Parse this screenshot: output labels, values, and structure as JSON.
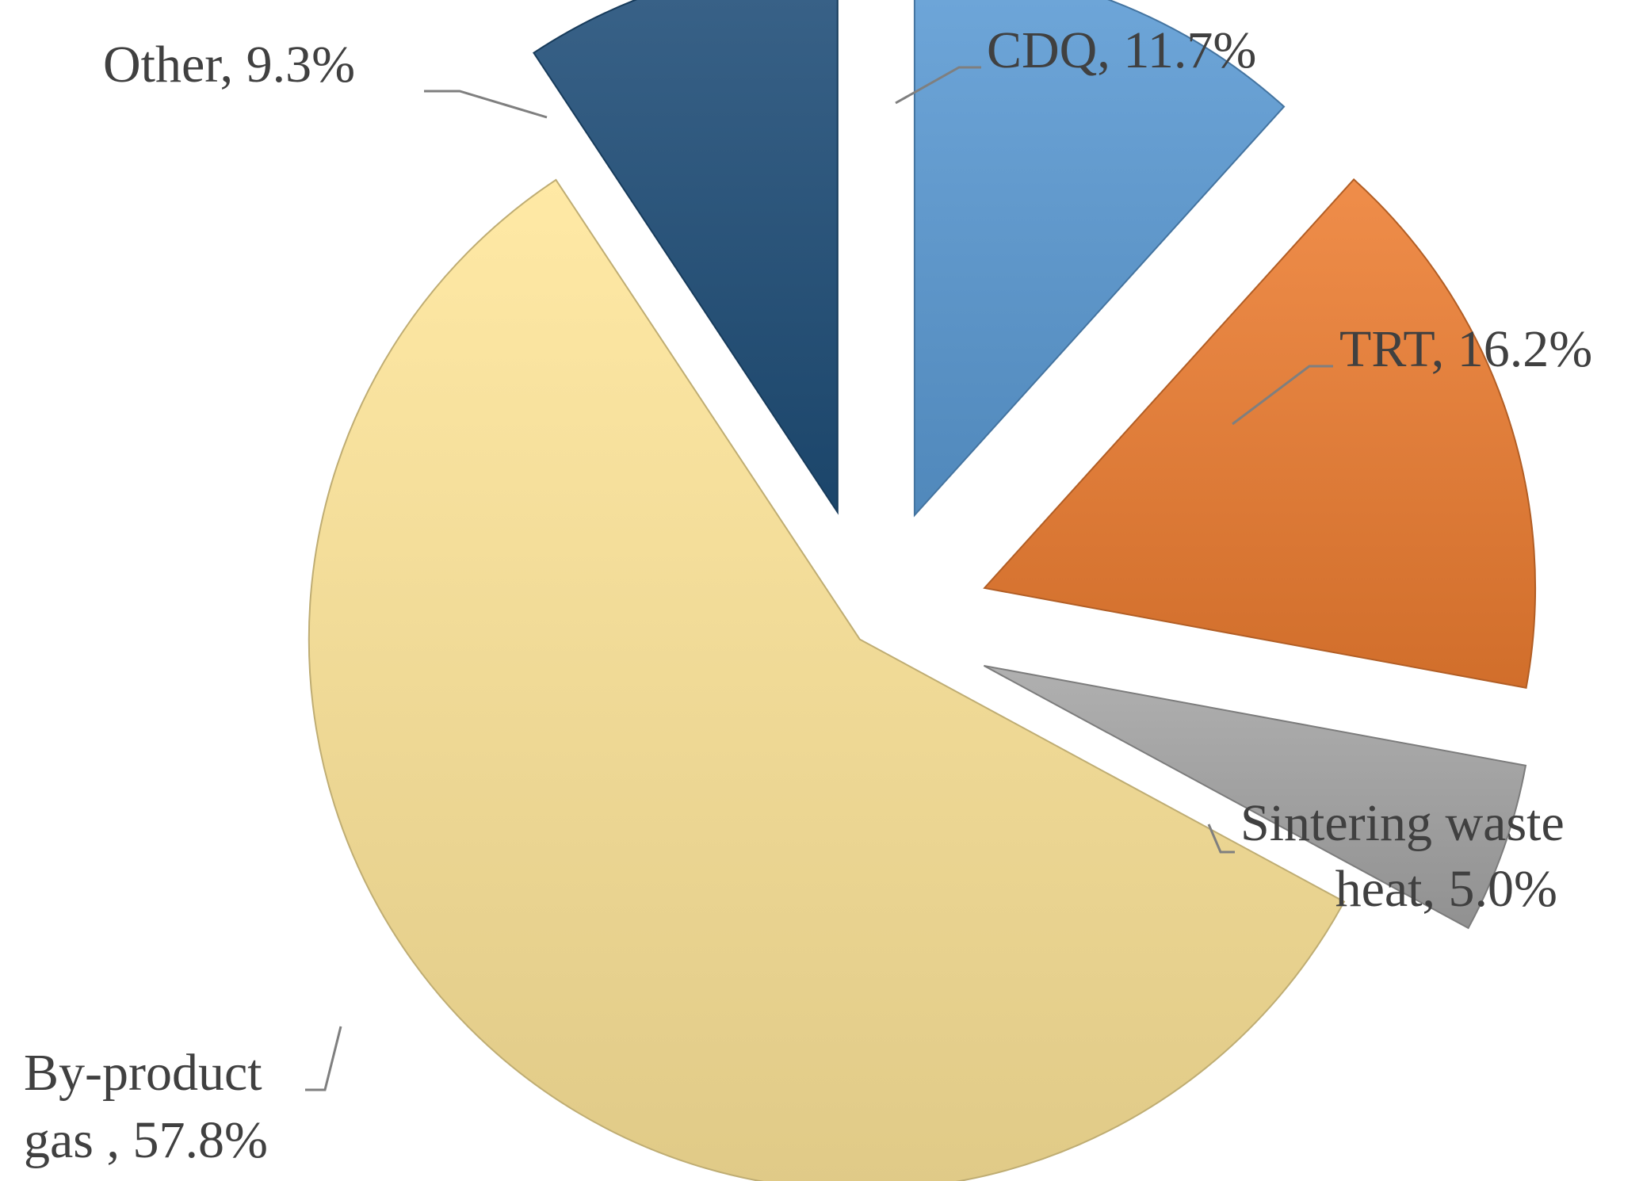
{
  "chart_data": {
    "type": "pie",
    "title": "",
    "start_angle_deg": 0,
    "direction": "clockwise",
    "exploded": true,
    "slices": [
      {
        "label": "CDQ, 11.7%",
        "value": 11.7,
        "color": "#5B9BD5"
      },
      {
        "label": "TRT, 16.2%",
        "value": 16.2,
        "color": "#ED7D31"
      },
      {
        "label": "Sintering waste heat, 5.0%",
        "value": 5.0,
        "color": "#A5A5A5"
      },
      {
        "label": "By-product gas , 57.8%",
        "value": 57.8,
        "color": "#FFE699"
      },
      {
        "label": "Other, 9.3%",
        "value": 9.3,
        "color": "#1F4E79"
      }
    ]
  }
}
